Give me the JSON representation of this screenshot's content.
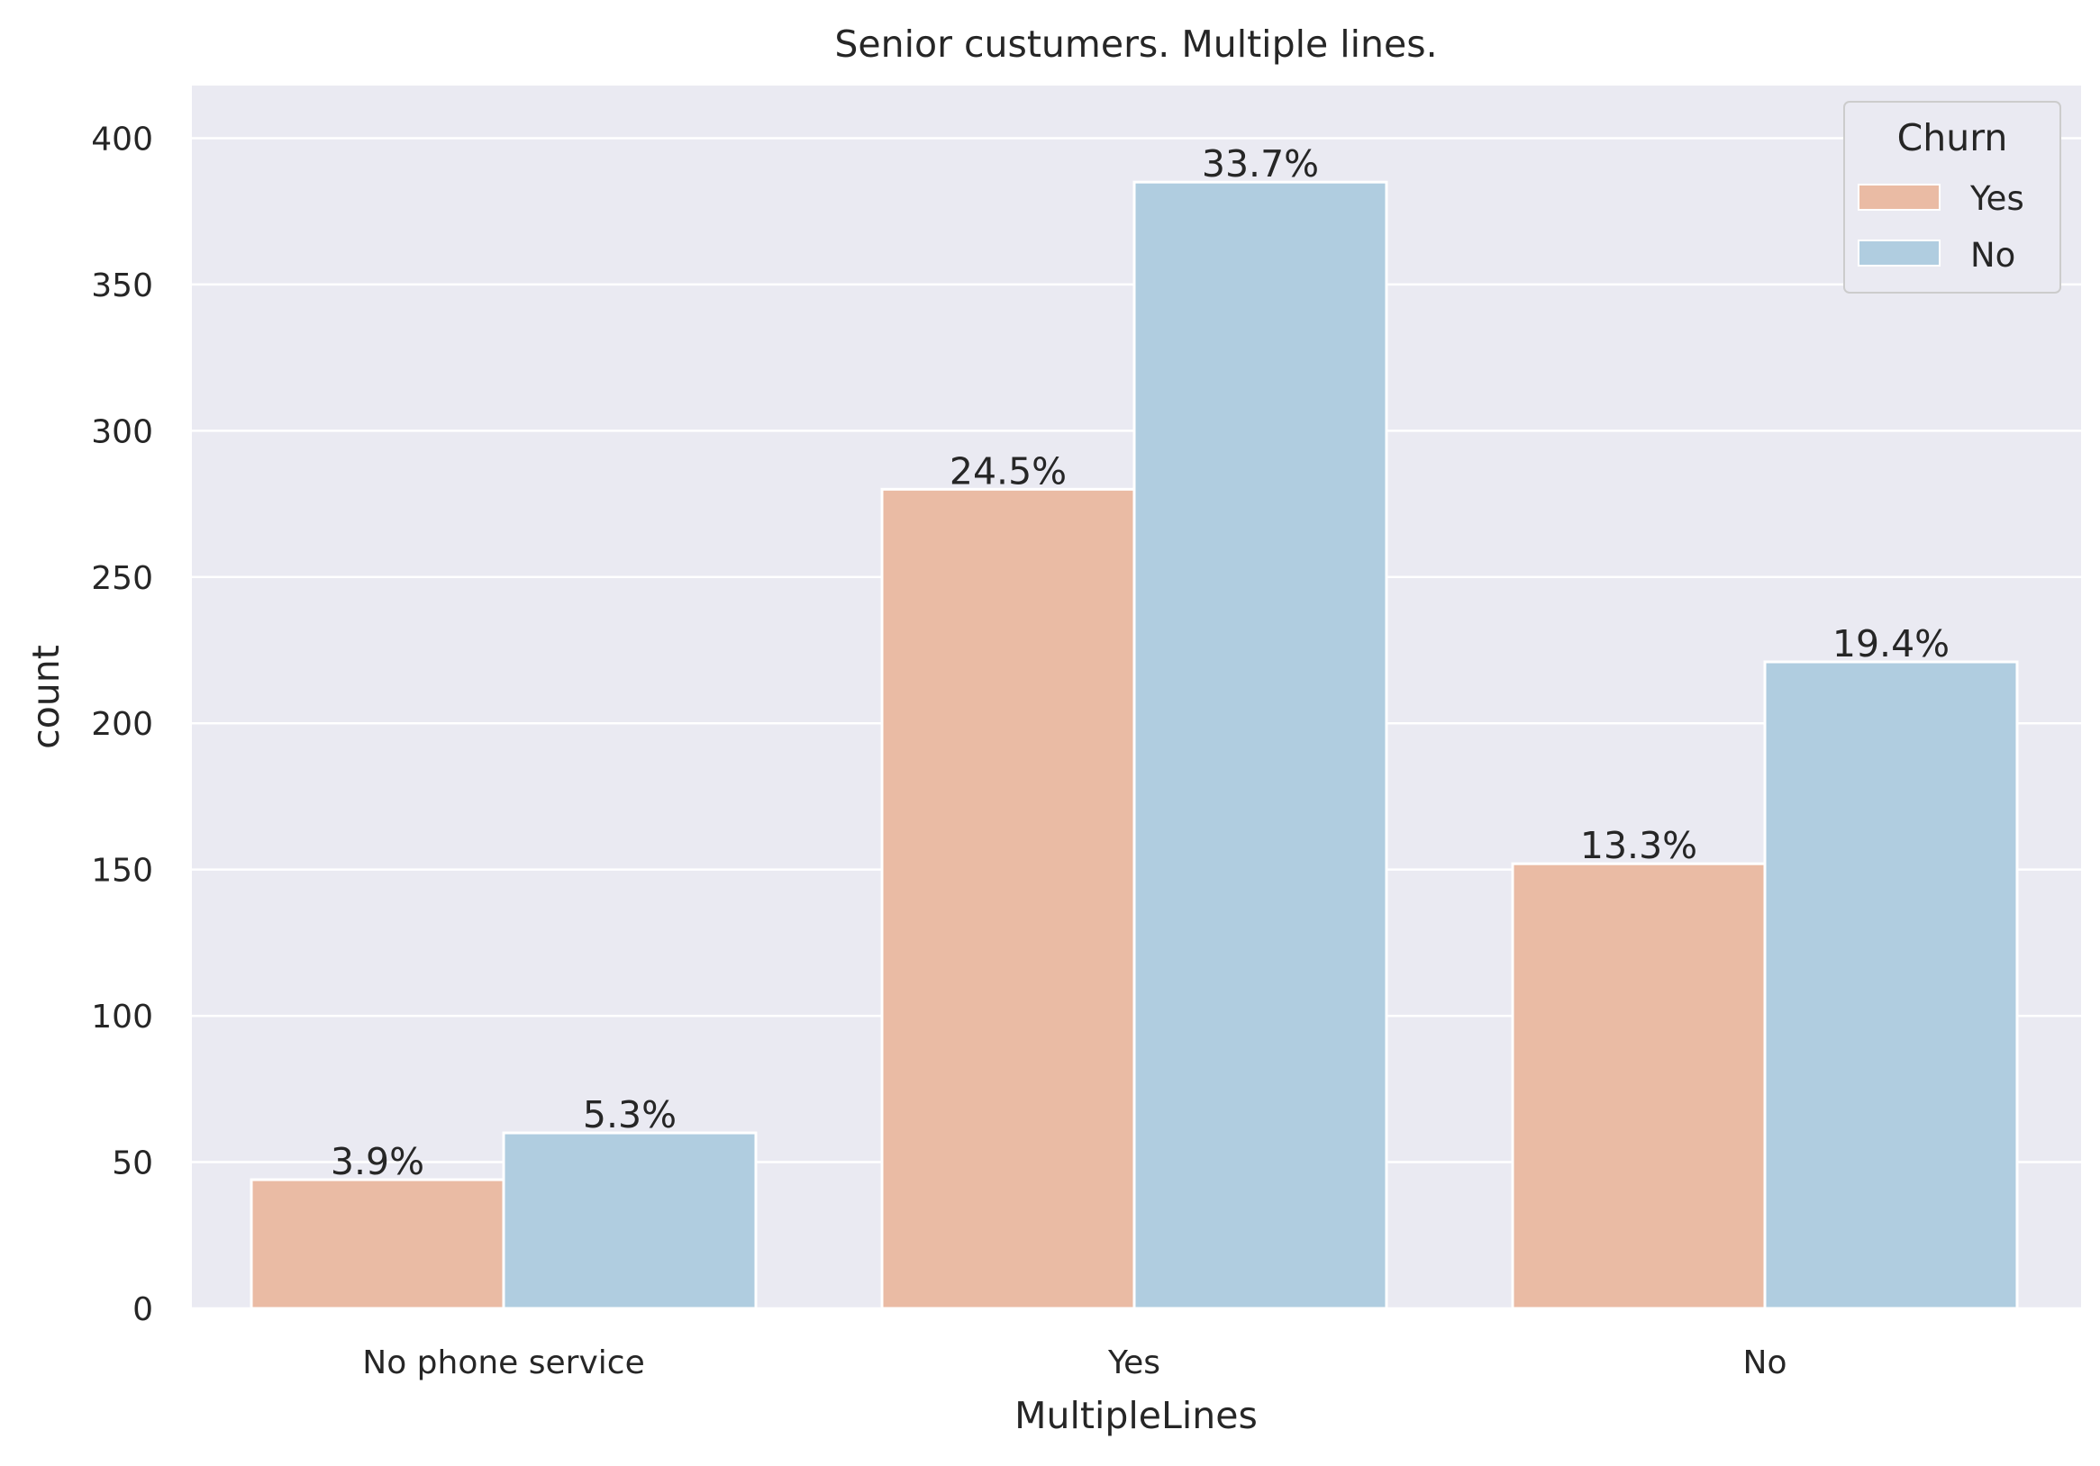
{
  "chart_data": {
    "type": "bar",
    "title": "Senior custumers. Multiple lines.",
    "xlabel": "MultipleLines",
    "ylabel": "count",
    "categories": [
      "No phone service",
      "Yes",
      "No"
    ],
    "series": [
      {
        "name": "Yes",
        "color": "#eabba4",
        "values": [
          44,
          280,
          152
        ],
        "labels": [
          "3.9%",
          "24.5%",
          "13.3%"
        ]
      },
      {
        "name": "No",
        "color": "#b0cde0",
        "values": [
          60,
          385,
          221
        ],
        "labels": [
          "5.3%",
          "33.7%",
          "19.4%"
        ]
      }
    ],
    "ylim": [
      0,
      400
    ],
    "yticks": [
      0,
      50,
      100,
      150,
      200,
      250,
      300,
      350,
      400
    ],
    "grid": true,
    "legend": {
      "title": "Churn",
      "placement": "top-right"
    },
    "colors": {
      "background": "#eaeaf2",
      "grid": "#ffffff",
      "bar_edge": "#ffffff",
      "text": "#262626"
    }
  }
}
